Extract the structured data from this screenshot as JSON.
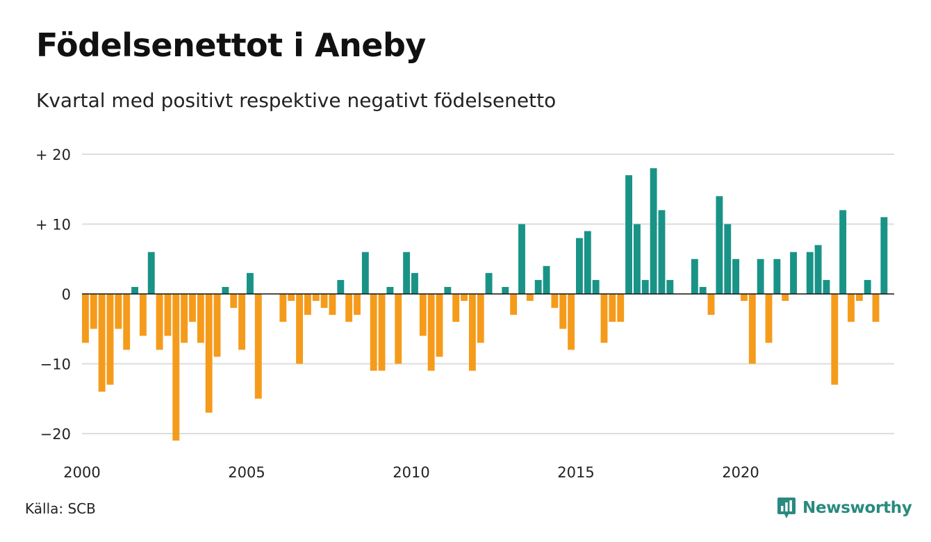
{
  "title": "Födelsenettot i Aneby",
  "subtitle": "Kvartal med positivt respektive negativt födelsenetto",
  "source": "Källa: SCB",
  "brand": "Newsworthy",
  "colors": {
    "positive": "#1a9387",
    "negative": "#f59b1c",
    "grid": "#dddddd",
    "zero": "#111111",
    "brand": "#2a8a7f"
  },
  "chart_data": {
    "type": "bar",
    "ylim": [
      -22,
      20
    ],
    "yticks": [
      20,
      10,
      0,
      -10,
      -20
    ],
    "ytick_labels": [
      "+ 20",
      "+ 10",
      "0",
      "−10",
      "−20"
    ],
    "xlim": [
      2000,
      2024.75
    ],
    "xticks": [
      2000,
      2005,
      2010,
      2015,
      2020
    ],
    "xtick_labels": [
      "2000",
      "2005",
      "2010",
      "2015",
      "2020"
    ],
    "grid": true,
    "x_start": "2000 Q1",
    "frequency": "quarterly",
    "values": [
      -7,
      -5,
      -14,
      -13,
      -5,
      -8,
      1,
      -6,
      6,
      -8,
      -6,
      -21,
      -7,
      -4,
      -7,
      -17,
      -9,
      1,
      -2,
      -8,
      3,
      -15,
      0,
      0,
      -4,
      -1,
      -10,
      -3,
      -1,
      -2,
      -3,
      2,
      -4,
      -3,
      6,
      -11,
      -11,
      1,
      -10,
      6,
      3,
      -6,
      -11,
      -9,
      1,
      -4,
      -1,
      -11,
      -7,
      3,
      0,
      1,
      -3,
      10,
      -1,
      2,
      4,
      -2,
      -5,
      -8,
      8,
      9,
      2,
      -7,
      -4,
      -4,
      17,
      10,
      2,
      18,
      12,
      2,
      0,
      0,
      5,
      1,
      -3,
      14,
      10,
      5,
      -1,
      -10,
      5,
      -7,
      5,
      -1,
      6,
      0,
      6,
      7,
      2,
      -13,
      12,
      -4,
      -1,
      2,
      -4,
      11
    ]
  }
}
